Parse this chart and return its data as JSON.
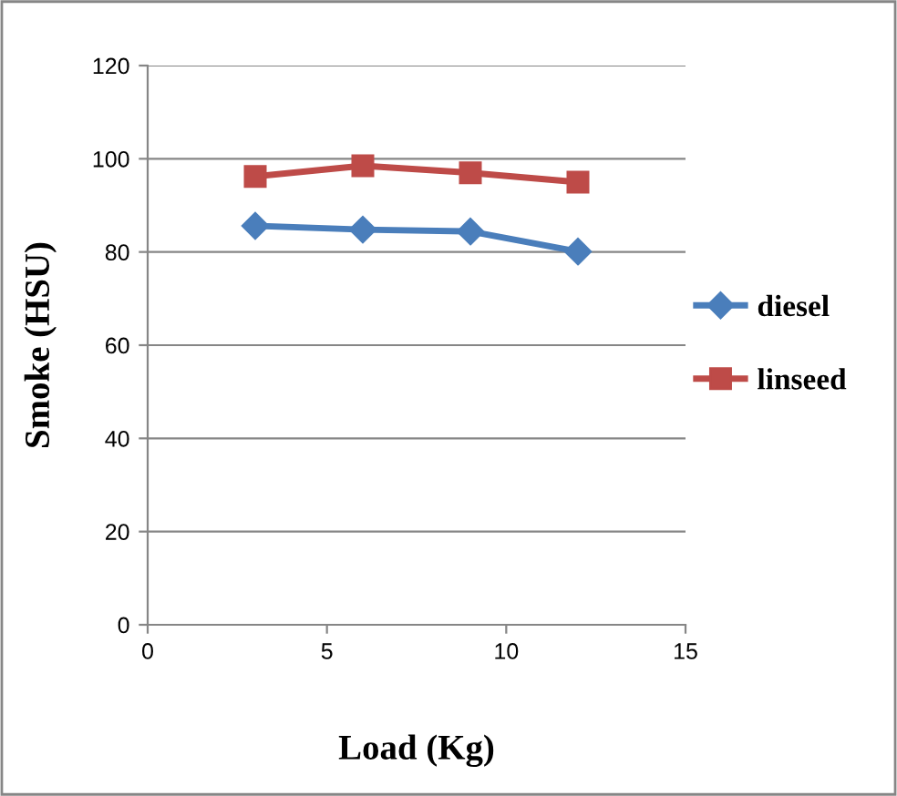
{
  "chart_data": {
    "type": "line",
    "xlabel": "Load (Kg)",
    "ylabel": "Smoke (HSU)",
    "x": [
      3,
      6,
      9,
      12
    ],
    "series": [
      {
        "name": "diesel",
        "color": "#4a7ebb",
        "marker": "diamond",
        "values": [
          85.6,
          84.8,
          84.4,
          80.1
        ]
      },
      {
        "name": "linseed",
        "color": "#be4b48",
        "marker": "square",
        "values": [
          96.2,
          98.5,
          97.0,
          95.0
        ]
      }
    ],
    "xlim": [
      0,
      15
    ],
    "xticks": [
      0,
      5,
      10,
      15
    ],
    "ylim": [
      0,
      120
    ],
    "yticks": [
      0,
      20,
      40,
      60,
      80,
      100,
      120
    ],
    "grid": "y",
    "legend": "right",
    "line_style": "solid"
  }
}
